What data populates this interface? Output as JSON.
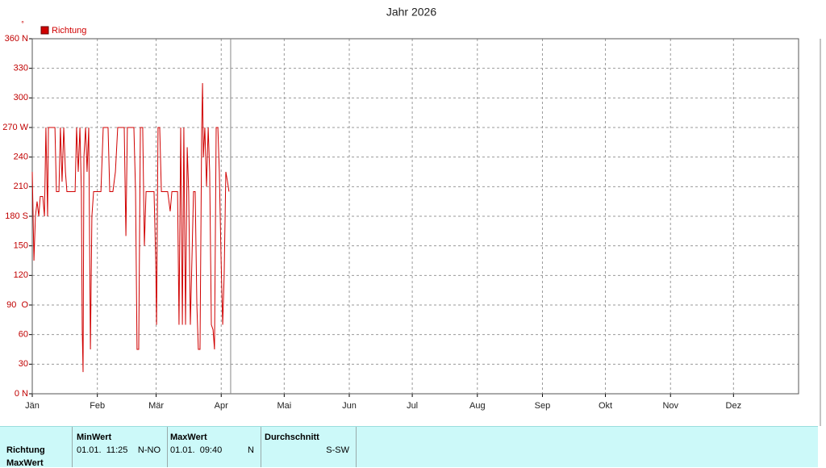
{
  "chart_data": {
    "type": "line",
    "title": "Jahr 2026",
    "ylabel": "°",
    "xlim": [
      0,
      365
    ],
    "ylim": [
      0,
      360
    ],
    "xticks": [
      {
        "value": 0,
        "label": "Jän"
      },
      {
        "value": 31,
        "label": "Feb"
      },
      {
        "value": 59,
        "label": "Mär"
      },
      {
        "value": 90,
        "label": "Apr"
      },
      {
        "value": 120,
        "label": "Mai"
      },
      {
        "value": 151,
        "label": "Jun"
      },
      {
        "value": 181,
        "label": "Jul"
      },
      {
        "value": 212,
        "label": "Aug"
      },
      {
        "value": 243,
        "label": "Sep"
      },
      {
        "value": 273,
        "label": "Okt"
      },
      {
        "value": 304,
        "label": "Nov"
      },
      {
        "value": 334,
        "label": "Dez"
      }
    ],
    "yticks": [
      {
        "value": 0,
        "label": "0 N"
      },
      30,
      60,
      {
        "value": 90,
        "label": "90  O"
      },
      120,
      150,
      {
        "value": 180,
        "label": "180 S"
      },
      210,
      240,
      {
        "value": 270,
        "label": "270 W"
      },
      300,
      330,
      {
        "value": 360,
        "label": "360 N"
      }
    ],
    "grid": true,
    "marker_x": 94.5,
    "series": [
      {
        "name": "Richtung",
        "color": "#d00000",
        "x": [
          0,
          0.8,
          1.5,
          2.3,
          3.1,
          3.8,
          5.0,
          5.8,
          6.5,
          7.3,
          7.7,
          9.2,
          10.8,
          11.5,
          12.7,
          13.4,
          14.2,
          15.0,
          15.8,
          16.5,
          17.7,
          19.2,
          20.4,
          21.1,
          21.9,
          22.7,
          23.4,
          23.8,
          24.2,
          24.6,
          25.4,
          26.1,
          26.9,
          27.7,
          28.4,
          29.2,
          30.7,
          32.7,
          33.8,
          35.0,
          36.1,
          36.9,
          38.4,
          39.6,
          40.7,
          42.3,
          43.8,
          44.6,
          45.3,
          46.9,
          48.4,
          49.2,
          49.9,
          50.7,
          51.5,
          52.6,
          53.4,
          54.2,
          55.3,
          56.9,
          58.0,
          58.8,
          59.2,
          59.9,
          60.7,
          61.5,
          63.0,
          64.5,
          65.7,
          66.5,
          68.0,
          69.2,
          69.9,
          70.7,
          71.5,
          72.2,
          73.0,
          73.8,
          74.5,
          75.3,
          76.1,
          76.8,
          77.6,
          78.4,
          79.1,
          79.9,
          80.7,
          81.1,
          81.5,
          82.2,
          83.0,
          83.8,
          84.5,
          85.3,
          86.1,
          86.8,
          87.6,
          88.4,
          89.1,
          89.9,
          90.7,
          91.4,
          92.2,
          93.0,
          93.7
        ],
        "values": [
          225,
          135,
          180,
          195,
          180,
          200,
          200,
          180,
          270,
          180,
          270,
          270,
          270,
          205,
          205,
          270,
          215,
          270,
          225,
          205,
          205,
          205,
          205,
          270,
          225,
          270,
          205,
          65,
          22,
          240,
          270,
          225,
          270,
          45,
          180,
          205,
          205,
          205,
          270,
          270,
          270,
          205,
          205,
          225,
          270,
          270,
          270,
          160,
          270,
          270,
          270,
          205,
          45,
          45,
          270,
          270,
          150,
          205,
          205,
          205,
          205,
          135,
          70,
          270,
          270,
          205,
          205,
          205,
          185,
          205,
          205,
          205,
          70,
          270,
          70,
          270,
          70,
          250,
          205,
          70,
          140,
          205,
          205,
          90,
          45,
          45,
          270,
          315,
          240,
          270,
          210,
          270,
          225,
          70,
          65,
          45,
          270,
          270,
          225,
          140,
          70,
          120,
          225,
          215,
          205
        ]
      }
    ]
  },
  "table": {
    "row_labels": [
      "Richtung",
      "MaxWert"
    ],
    "columns": [
      {
        "header": "MinWert",
        "value": "01.01.  11:25",
        "direction": "N-NO"
      },
      {
        "header": "MaxWert",
        "value": "01.01.  09:40",
        "direction": "N"
      },
      {
        "header": "Durchschnitt",
        "direction": "S-SW"
      }
    ]
  }
}
